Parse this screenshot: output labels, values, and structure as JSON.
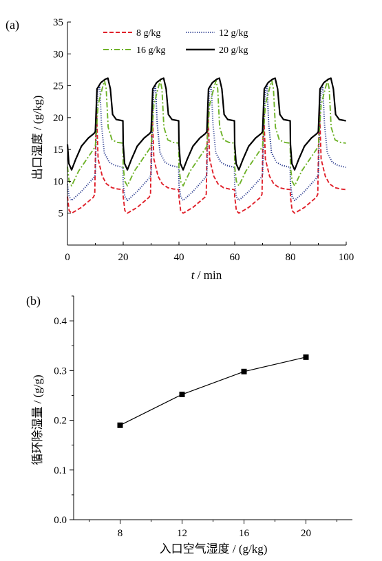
{
  "chart_data": [
    {
      "type": "line",
      "panel_label": "(a)",
      "xlabel_var": "t",
      "xlabel_unit": " / min",
      "ylabel": "出口湿度 / (g/kg)",
      "xlim": [
        0,
        100
      ],
      "ylim": [
        0,
        35
      ],
      "xticks": [
        0,
        20,
        40,
        60,
        80,
        100
      ],
      "yticks": [
        5,
        10,
        15,
        20,
        25,
        30,
        35
      ],
      "grid": false,
      "legend_position": "top",
      "cycle_minutes": 20,
      "series": [
        {
          "name": "8 g/kg",
          "color": "#e0202a",
          "dash": "dashed",
          "cycle": [
            [
              0,
              7.6
            ],
            [
              0.6,
              5.4
            ],
            [
              1.5,
              5.0
            ],
            [
              5,
              5.9
            ],
            [
              9.3,
              7.5
            ],
            [
              9.8,
              8.0
            ],
            [
              10.1,
              16
            ],
            [
              10.4,
              21.5
            ],
            [
              11,
              13.5
            ],
            [
              12.5,
              10.8
            ],
            [
              14,
              9.6
            ],
            [
              16,
              9.0
            ],
            [
              18,
              8.8
            ],
            [
              19.9,
              8.7
            ]
          ]
        },
        {
          "name": "12 g/kg",
          "color": "#2a3b8f",
          "dash": "dotted",
          "cycle": [
            [
              0,
              9.5
            ],
            [
              0.6,
              7.6
            ],
            [
              1.5,
              7.0
            ],
            [
              5,
              8.4
            ],
            [
              9.3,
              10.5
            ],
            [
              10,
              11
            ],
            [
              10.4,
              18
            ],
            [
              10.9,
              24.0
            ],
            [
              11.6,
              24.9
            ],
            [
              12.2,
              19
            ],
            [
              13.2,
              14.5
            ],
            [
              15,
              13
            ],
            [
              17,
              12.5
            ],
            [
              19.9,
              12.2
            ]
          ]
        },
        {
          "name": "16 g/kg",
          "color": "#6fb32a",
          "dash": "dashdot",
          "cycle": [
            [
              0,
              12.3
            ],
            [
              0.6,
              10.0
            ],
            [
              1.5,
              9.3
            ],
            [
              4,
              11.6
            ],
            [
              9.3,
              15.0
            ],
            [
              10,
              15.5
            ],
            [
              11,
              22
            ],
            [
              12.5,
              24.6
            ],
            [
              13.3,
              25.8
            ],
            [
              13.9,
              24.5
            ],
            [
              14.6,
              18.5
            ],
            [
              16,
              16.5
            ],
            [
              18,
              16.1
            ],
            [
              19.9,
              16.0
            ]
          ]
        },
        {
          "name": "20 g/kg",
          "color": "#000000",
          "dash": "solid",
          "cycle": [
            [
              0,
              15.8
            ],
            [
              0.5,
              12.8
            ],
            [
              1.5,
              11.8
            ],
            [
              3,
              13.5
            ],
            [
              5,
              15.5
            ],
            [
              7.5,
              16.8
            ],
            [
              9.5,
              17.5
            ],
            [
              10,
              17.8
            ],
            [
              10.6,
              24.5
            ],
            [
              12,
              25.5
            ],
            [
              13.5,
              26.0
            ],
            [
              14.5,
              26.2
            ],
            [
              15.4,
              24.5
            ],
            [
              16.2,
              20.5
            ],
            [
              17.5,
              19.7
            ],
            [
              19.9,
              19.5
            ]
          ]
        }
      ]
    },
    {
      "type": "scatter",
      "panel_label": "(b)",
      "xlabel": "入口空气湿度 / (g/kg)",
      "ylabel": "循环除湿量 / (g/g)",
      "xlim": [
        5,
        23
      ],
      "ylim": [
        0,
        0.45
      ],
      "xticks": [
        8,
        12,
        16,
        20
      ],
      "yticks": [
        0.0,
        0.1,
        0.2,
        0.3,
        0.4
      ],
      "ytick_labels": [
        "0.0",
        "0.1",
        "0.2",
        "0.3",
        "0.4"
      ],
      "grid": false,
      "x": [
        8,
        12,
        16,
        20
      ],
      "y": [
        0.19,
        0.252,
        0.298,
        0.327
      ],
      "marker": "square",
      "connected": true,
      "color": "#000000"
    }
  ]
}
